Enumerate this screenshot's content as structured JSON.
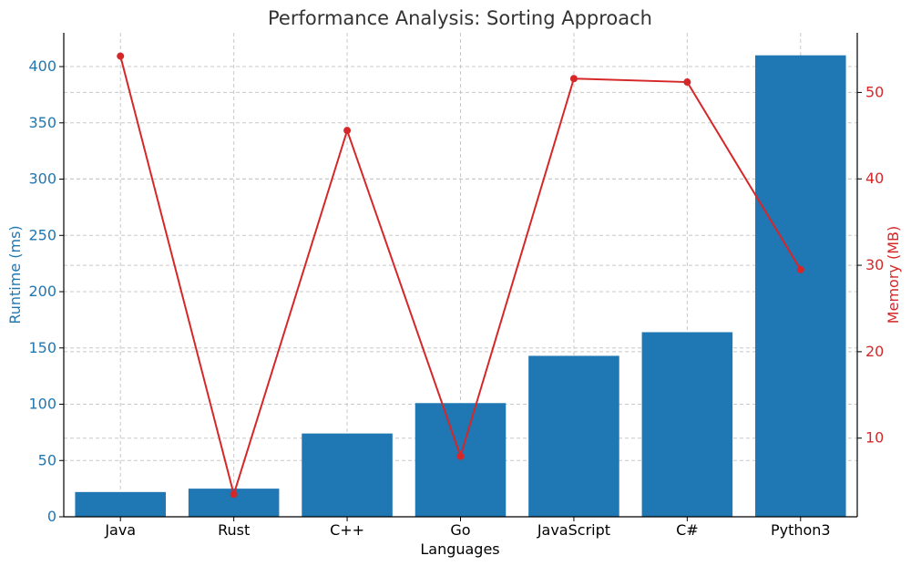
{
  "chart_data": {
    "type": "bar",
    "title": "Performance Analysis: Sorting Approach",
    "xlabel": "Languages",
    "categories": [
      "Java",
      "Rust",
      "C++",
      "Go",
      "JavaScript",
      "C#",
      "Python3"
    ],
    "grid": true,
    "series": [
      {
        "type": "bar",
        "axis": "left",
        "color": "#1f77b4",
        "values": [
          22,
          25,
          74,
          101,
          143,
          164,
          410
        ]
      },
      {
        "type": "line",
        "axis": "right",
        "color": "#d62728",
        "marker": "circle",
        "values": [
          54.2,
          3.5,
          45.6,
          7.9,
          51.6,
          51.2,
          29.5
        ]
      }
    ],
    "y_left": {
      "label": "Runtime (ms)",
      "color": "#1f77b4",
      "ylim": [
        0,
        430
      ],
      "ticks": [
        0,
        50,
        100,
        150,
        200,
        250,
        300,
        350,
        400
      ]
    },
    "y_right": {
      "label": "Memory (MB)",
      "color": "#d62728",
      "ylim": [
        0.9,
        56.9
      ],
      "ticks": [
        10,
        20,
        30,
        40,
        50
      ]
    }
  }
}
